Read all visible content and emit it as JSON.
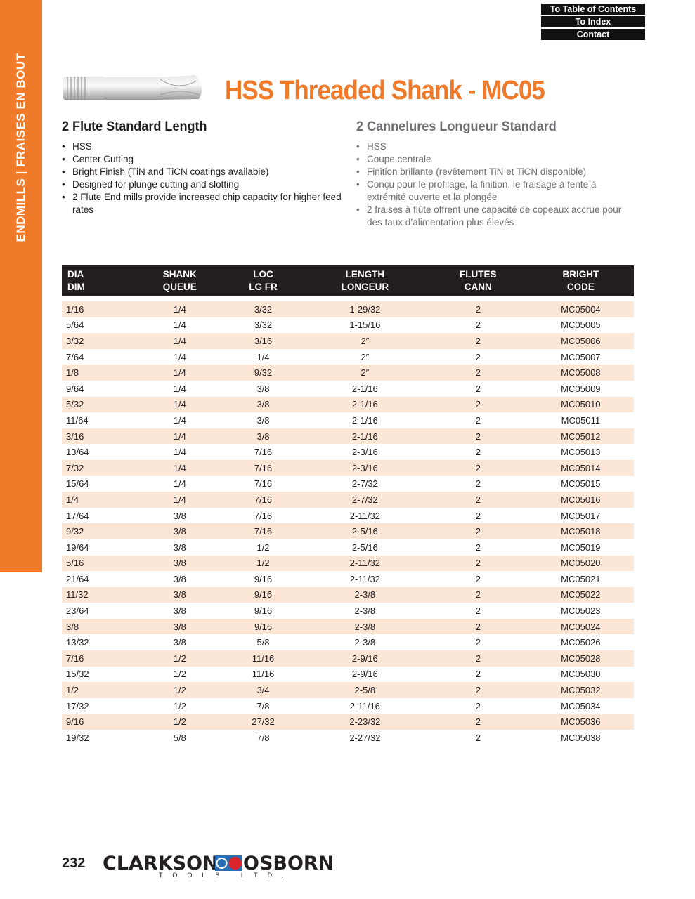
{
  "sidebar": {
    "label": "ENDMILLS  |  FRAISES EN BOUT"
  },
  "nav": {
    "toc": "To Table of Contents",
    "index": "To Index",
    "contact": "Contact"
  },
  "title": "HSS Threaded Shank - MC05",
  "english": {
    "heading": "2 Flute Standard Length",
    "bullets": [
      "HSS",
      "Center Cutting",
      "Bright Finish (TiN and TiCN coatings available)",
      "Designed for plunge cutting and slotting",
      "2 Flute End mills provide increased chip capacity for higher feed rates"
    ]
  },
  "french": {
    "heading": "2 Cannelures Longueur Standard",
    "bullets": [
      "HSS",
      "Coupe centrale",
      "Finition brillante (revêtement TiN et TiCN disponible)",
      "Conçu pour le profilage, la finition, le fraisage à fente à extrémité ouverte et la plongée",
      "2 fraises à flûte offrent une capacité de copeaux accrue pour des taux d’alimentation plus élevés"
    ]
  },
  "table": {
    "headers": [
      [
        "DIA",
        "DIM"
      ],
      [
        "SHANK",
        "QUEUE"
      ],
      [
        "LOC",
        "LG FR"
      ],
      [
        "LENGTH",
        "LONGEUR"
      ],
      [
        "FLUTES",
        "CANN"
      ],
      [
        "BRIGHT",
        "CODE"
      ]
    ],
    "rows": [
      [
        "1/16",
        "1/4",
        "3/32",
        "1-29/32",
        "2",
        "MC05004"
      ],
      [
        "5/64",
        "1/4",
        "3/32",
        "1-15/16",
        "2",
        "MC05005"
      ],
      [
        "3/32",
        "1/4",
        "3/16",
        "2″",
        "2",
        "MC05006"
      ],
      [
        "7/64",
        "1/4",
        "1/4",
        "2″",
        "2",
        "MC05007"
      ],
      [
        "1/8",
        "1/4",
        "9/32",
        "2″",
        "2",
        "MC05008"
      ],
      [
        "9/64",
        "1/4",
        "3/8",
        "2-1/16",
        "2",
        "MC05009"
      ],
      [
        "5/32",
        "1/4",
        "3/8",
        "2-1/16",
        "2",
        "MC05010"
      ],
      [
        "11/64",
        "1/4",
        "3/8",
        "2-1/16",
        "2",
        "MC05011"
      ],
      [
        "3/16",
        "1/4",
        "3/8",
        "2-1/16",
        "2",
        "MC05012"
      ],
      [
        "13/64",
        "1/4",
        "7/16",
        "2-3/16",
        "2",
        "MC05013"
      ],
      [
        "7/32",
        "1/4",
        "7/16",
        "2-3/16",
        "2",
        "MC05014"
      ],
      [
        "15/64",
        "1/4",
        "7/16",
        "2-7/32",
        "2",
        "MC05015"
      ],
      [
        "1/4",
        "1/4",
        "7/16",
        "2-7/32",
        "2",
        "MC05016"
      ],
      [
        "17/64",
        "3/8",
        "7/16",
        "2-11/32",
        "2",
        "MC05017"
      ],
      [
        "9/32",
        "3/8",
        "7/16",
        "2-5/16",
        "2",
        "MC05018"
      ],
      [
        "19/64",
        "3/8",
        "1/2",
        "2-5/16",
        "2",
        "MC05019"
      ],
      [
        "5/16",
        "3/8",
        "1/2",
        "2-11/32",
        "2",
        "MC05020"
      ],
      [
        "21/64",
        "3/8",
        "9/16",
        "2-11/32",
        "2",
        "MC05021"
      ],
      [
        "11/32",
        "3/8",
        "9/16",
        "2-3/8",
        "2",
        "MC05022"
      ],
      [
        "23/64",
        "3/8",
        "9/16",
        "2-3/8",
        "2",
        "MC05023"
      ],
      [
        "3/8",
        "3/8",
        "9/16",
        "2-3/8",
        "2",
        "MC05024"
      ],
      [
        "13/32",
        "3/8",
        "5/8",
        "2-3/8",
        "2",
        "MC05026"
      ],
      [
        "7/16",
        "1/2",
        "11/16",
        "2-9/16",
        "2",
        "MC05028"
      ],
      [
        "15/32",
        "1/2",
        "11/16",
        "2-9/16",
        "2",
        "MC05030"
      ],
      [
        "1/2",
        "1/2",
        "3/4",
        "2-5/8",
        "2",
        "MC05032"
      ],
      [
        "17/32",
        "1/2",
        "7/8",
        "2-11/16",
        "2",
        "MC05034"
      ],
      [
        "9/16",
        "1/2",
        "27/32",
        "2-23/32",
        "2",
        "MC05036"
      ],
      [
        "19/32",
        "5/8",
        "7/8",
        "2-27/32",
        "2",
        "MC05038"
      ]
    ]
  },
  "footer": {
    "page": "232",
    "brand_left": "CLARKSON",
    "brand_right": "OSBORN",
    "brand_sub": "TOOLS LTD."
  },
  "colors": {
    "accent": "#ef7a2a",
    "stripe": "#fce6d6",
    "header": "#231f20"
  }
}
